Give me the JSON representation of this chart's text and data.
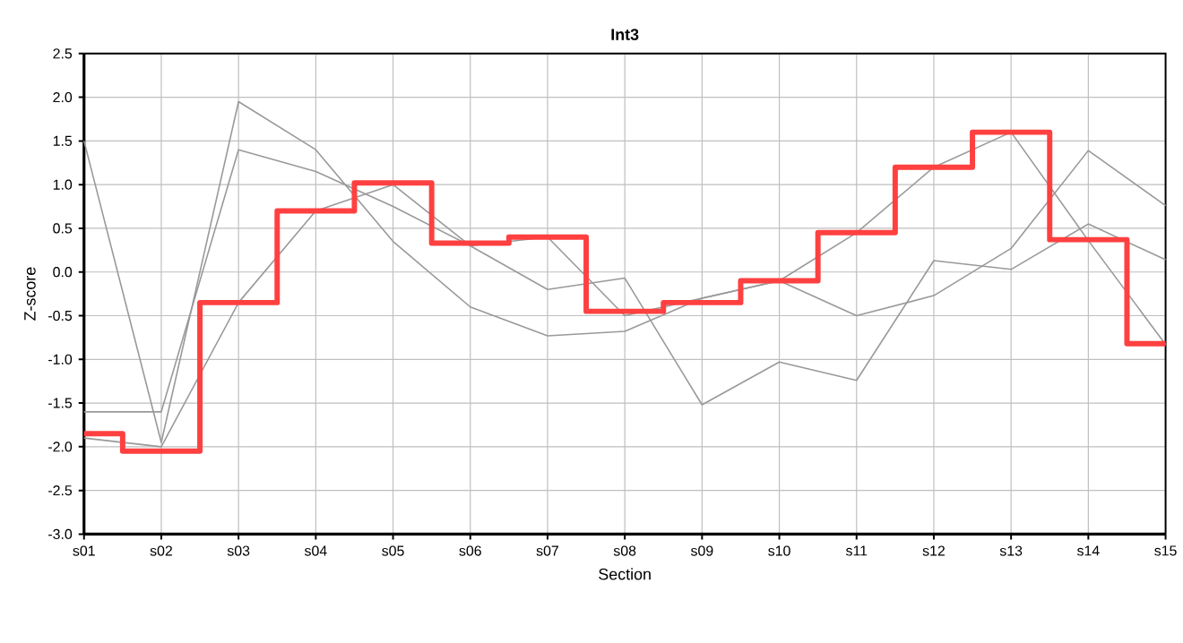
{
  "chart_data": {
    "type": "line",
    "title": "Int3",
    "xlabel": "Section",
    "ylabel": "Z-score",
    "categories": [
      "s01",
      "s02",
      "s03",
      "s04",
      "s05",
      "s06",
      "s07",
      "s08",
      "s09",
      "s10",
      "s11",
      "s12",
      "s13",
      "s14",
      "s15"
    ],
    "series": [
      {
        "color": "#999999",
        "values": [
          1.5,
          -1.95,
          1.95,
          1.4,
          0.35,
          -0.4,
          -0.73,
          -0.68,
          -0.3,
          -0.1,
          -0.5,
          -0.27,
          0.27,
          1.39,
          0.76
        ]
      },
      {
        "color": "#999999",
        "values": [
          -1.6,
          -1.6,
          1.4,
          1.15,
          0.75,
          0.3,
          -0.2,
          -0.07,
          -1.52,
          -1.03,
          -1.24,
          0.13,
          0.03,
          0.55,
          0.14
        ]
      },
      {
        "color": "#999999",
        "values": [
          -1.9,
          -2.0,
          -0.35,
          0.7,
          1.0,
          0.3,
          0.4,
          -0.5,
          -0.3,
          -0.1,
          0.45,
          1.2,
          1.6,
          0.36,
          -0.83
        ]
      },
      {
        "type": "step",
        "color": "#ff4040",
        "values": [
          -1.85,
          -2.05,
          -0.35,
          0.7,
          1.02,
          0.33,
          0.4,
          -0.45,
          -0.35,
          -0.1,
          0.45,
          1.2,
          1.6,
          0.37,
          -0.82
        ]
      }
    ],
    "ylim": [
      -3.0,
      2.5
    ],
    "yticks": [
      {
        "value": -3.0,
        "label": "-3.0"
      },
      {
        "value": -2.5,
        "label": "-2.5"
      },
      {
        "value": -2.0,
        "label": "-2.0"
      },
      {
        "value": -1.5,
        "label": "-1.5"
      },
      {
        "value": -1.0,
        "label": "-1.0"
      },
      {
        "value": -0.5,
        "label": "-0.5"
      },
      {
        "value": 0.0,
        "label": "0.0"
      },
      {
        "value": 0.5,
        "label": "0.5"
      },
      {
        "value": 1.0,
        "label": "1.0"
      },
      {
        "value": 1.5,
        "label": "1.5"
      },
      {
        "value": 2.0,
        "label": "2.0"
      },
      {
        "value": 2.5,
        "label": "2.5"
      }
    ],
    "grid": true,
    "marker": "none",
    "line_style": "solid"
  }
}
